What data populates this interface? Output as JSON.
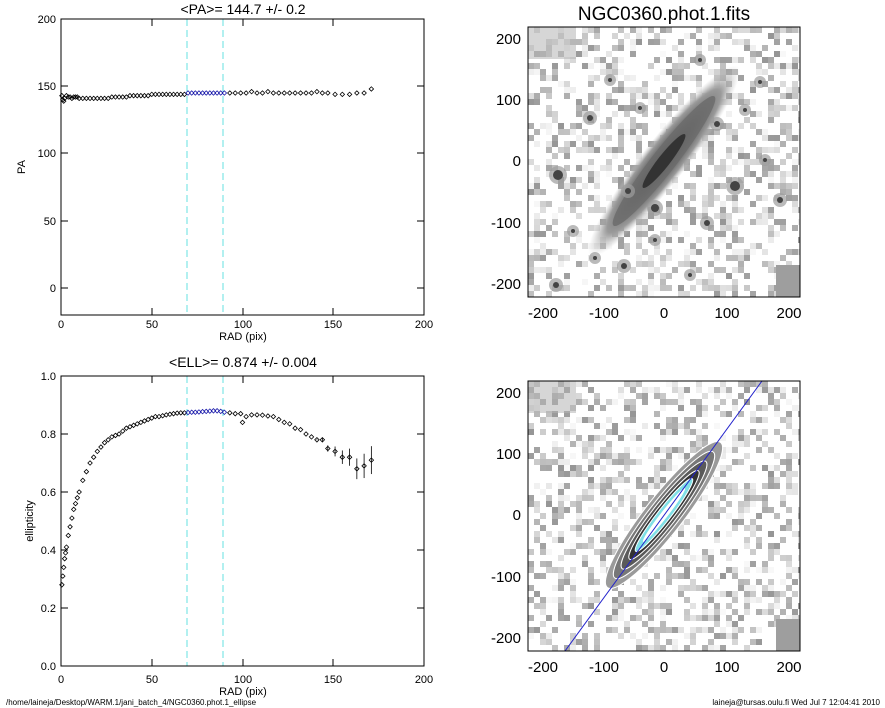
{
  "footer": {
    "path": "/home/laineja/Desktop/WARM.1/jani_batch_4/NGC0360.phot.1_ellipse",
    "user_date": "laineja@tursas.oulu.fi  Wed Jul  7 12:04:41 2010"
  },
  "colors": {
    "axis": "#000000",
    "points": "#000000",
    "fit_points": "#1a1aaa",
    "window_lines": "#66e0e0",
    "major_axis_line": "#2222cc",
    "contours": "#ffffff",
    "galaxy_core": "#7fe0e6"
  },
  "chart_data": [
    {
      "type": "scatter",
      "title": "<PA>= 144.7 +/-   0.2",
      "xlabel": "RAD (pix)",
      "ylabel": "PA",
      "xlim": [
        0,
        200
      ],
      "ylim": [
        -20,
        200
      ],
      "xticks": [
        0,
        50,
        100,
        150,
        200
      ],
      "yticks": [
        0,
        50,
        100,
        150,
        200
      ],
      "vlines": [
        70,
        90
      ],
      "fit_range": [
        70,
        90
      ],
      "x": [
        0.5,
        1,
        1.5,
        2,
        3,
        4,
        5,
        6,
        7,
        8,
        9,
        10,
        12,
        14,
        16,
        18,
        20,
        22,
        24,
        26,
        28,
        30,
        32,
        34,
        36,
        38,
        40,
        42,
        44,
        46,
        48,
        50,
        52,
        54,
        56,
        58,
        60,
        62,
        64,
        66,
        68,
        70,
        72,
        74,
        76,
        78,
        80,
        82,
        84,
        86,
        88,
        90,
        93,
        96,
        99,
        102,
        105,
        108,
        111,
        114,
        117,
        120,
        123,
        126,
        129,
        132,
        135,
        138,
        141,
        144,
        147,
        151,
        155,
        159,
        163,
        167,
        171
      ],
      "y": [
        143,
        140,
        139,
        141,
        143,
        142,
        142,
        141,
        142,
        142,
        142,
        141,
        141,
        141,
        141,
        141,
        141,
        141,
        141,
        141,
        142,
        142,
        142,
        142,
        142,
        143,
        143,
        143,
        143,
        143,
        143,
        144,
        144,
        144,
        144,
        144,
        144,
        144,
        144,
        144,
        144,
        145,
        145,
        145,
        145,
        145,
        145,
        145,
        145,
        145,
        145,
        145,
        145,
        145,
        145,
        145,
        146,
        145,
        145,
        146,
        145,
        145,
        145,
        145,
        145,
        145,
        145,
        145,
        146,
        145,
        145,
        144,
        144,
        144,
        145,
        145,
        148
      ]
    },
    {
      "type": "scatter",
      "title": "<ELL>= 0.874 +/-  0.004",
      "xlabel": "RAD (pix)",
      "ylabel": "ellipticity",
      "xlim": [
        0,
        200
      ],
      "ylim": [
        0,
        1
      ],
      "xticks": [
        0,
        50,
        100,
        150,
        200
      ],
      "yticks": [
        0.0,
        0.2,
        0.4,
        0.6,
        0.8,
        1.0
      ],
      "ytick_labels": [
        "0.0",
        "0.2",
        "0.4",
        "0.6",
        "0.8",
        "1.0"
      ],
      "vlines": [
        70,
        90
      ],
      "fit_range": [
        70,
        90
      ],
      "x": [
        0.5,
        1,
        1.5,
        2,
        2.5,
        3,
        4,
        5,
        6,
        7,
        8,
        9,
        10,
        12,
        14,
        16,
        18,
        20,
        22,
        24,
        26,
        28,
        30,
        32,
        34,
        36,
        38,
        40,
        42,
        44,
        46,
        48,
        50,
        52,
        54,
        56,
        58,
        60,
        62,
        64,
        66,
        68,
        70,
        72,
        74,
        76,
        78,
        80,
        82,
        84,
        86,
        88,
        90,
        93,
        96,
        99,
        102,
        105,
        108,
        111,
        114,
        117,
        120,
        123,
        126,
        129,
        132,
        135,
        138,
        141,
        144,
        147,
        151,
        155,
        159,
        163,
        167,
        171
      ],
      "y": [
        0.28,
        0.31,
        0.34,
        0.37,
        0.39,
        0.41,
        0.45,
        0.48,
        0.51,
        0.54,
        0.56,
        0.58,
        0.6,
        0.64,
        0.67,
        0.7,
        0.72,
        0.74,
        0.755,
        0.77,
        0.78,
        0.79,
        0.795,
        0.8,
        0.81,
        0.82,
        0.825,
        0.83,
        0.835,
        0.84,
        0.845,
        0.85,
        0.855,
        0.86,
        0.86,
        0.863,
        0.866,
        0.868,
        0.87,
        0.872,
        0.873,
        0.873,
        0.874,
        0.875,
        0.875,
        0.876,
        0.877,
        0.878,
        0.879,
        0.88,
        0.88,
        0.878,
        0.875,
        0.873,
        0.87,
        0.87,
        0.86,
        0.866,
        0.866,
        0.865,
        0.862,
        0.86,
        0.85,
        0.84,
        0.835,
        0.82,
        0.815,
        0.8,
        0.79,
        0.78,
        0.78,
        0.75,
        0.74,
        0.72,
        0.72,
        0.68,
        0.69,
        0.71
      ],
      "outliers": [
        {
          "x": 100,
          "y": 0.84
        }
      ]
    },
    {
      "type": "heatmap",
      "title": "NGC0360.phot.1.fits",
      "xlim": [
        -220,
        220
      ],
      "ylim": [
        -220,
        220
      ],
      "xticks": [
        -200,
        -100,
        0,
        100,
        200
      ],
      "yticks": [
        -200,
        -100,
        0,
        100,
        200
      ],
      "colormap": "inverted grayscale",
      "galaxy_pa_deg": 144.7,
      "galaxy_ellipticity": 0.874
    },
    {
      "type": "heatmap",
      "title": "",
      "xlim": [
        -220,
        220
      ],
      "ylim": [
        -220,
        220
      ],
      "xticks": [
        -200,
        -100,
        0,
        100,
        200
      ],
      "yticks": [
        -200,
        -100,
        0,
        100,
        200
      ],
      "colormap": "inverted grayscale with isophote contours",
      "overlay": "major-axis line"
    }
  ]
}
